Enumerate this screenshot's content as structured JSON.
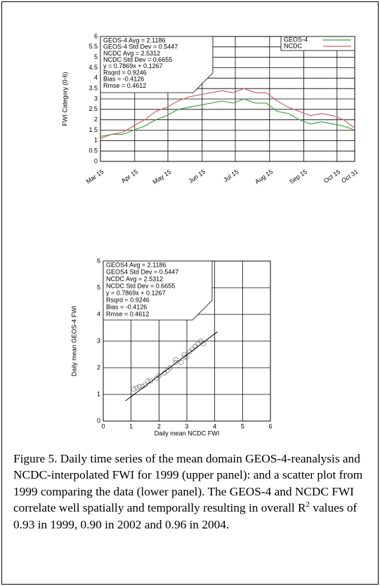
{
  "chart_data": [
    {
      "type": "line",
      "ylabel": "FWI Category (0-6)",
      "x": [
        0,
        10,
        20,
        30,
        40,
        50,
        60,
        70,
        80,
        90,
        100,
        110,
        120,
        130,
        140,
        150,
        160,
        170,
        180,
        190,
        200,
        210,
        220,
        230
      ],
      "xlim": [
        0,
        230
      ],
      "xticks": [
        {
          "value": 0,
          "label": "Mar 15"
        },
        {
          "value": 31,
          "label": "Apr 15"
        },
        {
          "value": 61,
          "label": "May 15"
        },
        {
          "value": 92,
          "label": "Jun 15"
        },
        {
          "value": 122,
          "label": "Jul 15"
        },
        {
          "value": 153,
          "label": "Aug 15"
        },
        {
          "value": 184,
          "label": "Sep 15"
        },
        {
          "value": 214,
          "label": "Oct 15"
        },
        {
          "value": 230,
          "label": "Oct 31"
        }
      ],
      "ylim": [
        0,
        6
      ],
      "yticks": [
        0,
        0.5,
        1,
        1.5,
        2,
        2.5,
        3,
        3.5,
        4,
        4.5,
        5,
        5.5,
        6
      ],
      "grid": true,
      "legend": "upper right",
      "annotation_lines": [
        "GEOS-4 Avg = 2.1186",
        "GEOS-4 Std Dev = 0.5447",
        "NCDC Avg = 2.5312",
        "NCDC Std Dev = 0.6655",
        "y = 0.7869x + 0.1267",
        "Rsqrd = 0.9246",
        "Bias = -0.4126",
        "Rmse = 0.4612"
      ],
      "series": [
        {
          "name": "GEOS-4",
          "color": "#3aa83a",
          "values": [
            1.2,
            1.3,
            1.3,
            1.5,
            1.7,
            2.0,
            2.2,
            2.5,
            2.6,
            2.7,
            2.8,
            2.9,
            2.8,
            3.0,
            2.8,
            2.8,
            2.4,
            2.3,
            2.0,
            1.8,
            1.9,
            1.8,
            1.7,
            1.5
          ]
        },
        {
          "name": "NCDC",
          "color": "#cc6666",
          "values": [
            1.1,
            1.3,
            1.4,
            1.7,
            2.0,
            2.4,
            2.6,
            2.9,
            3.1,
            3.2,
            3.3,
            3.4,
            3.3,
            3.5,
            3.3,
            3.3,
            2.9,
            2.6,
            2.4,
            2.2,
            2.3,
            2.2,
            2.0,
            1.6
          ]
        }
      ]
    },
    {
      "type": "scatter",
      "xlabel": "Daily mean NCDC FWI",
      "ylabel": "Daily mean GEOS-4 FWI",
      "x": [
        1.1,
        1.3,
        1.4,
        1.7,
        2.0,
        2.4,
        2.6,
        2.9,
        3.1,
        3.2,
        3.3,
        3.4,
        3.3,
        3.5,
        3.3,
        3.3,
        2.9,
        2.6,
        2.4,
        2.2,
        2.3,
        2.2,
        2.0,
        1.6,
        1.2,
        1.5,
        1.9,
        2.8,
        3.0,
        3.6
      ],
      "values": [
        1.2,
        1.3,
        1.3,
        1.5,
        1.7,
        2.0,
        2.2,
        2.5,
        2.6,
        2.7,
        2.8,
        2.9,
        2.8,
        3.0,
        2.8,
        2.8,
        2.4,
        2.3,
        2.0,
        1.8,
        1.9,
        1.8,
        1.7,
        1.5,
        1.25,
        1.35,
        1.6,
        2.2,
        2.4,
        2.9
      ],
      "color": "#888888",
      "fit_line": {
        "x": [
          0.8,
          4.1
        ],
        "values": [
          0.76,
          3.35
        ],
        "color": "#000000"
      },
      "xlim": [
        0,
        6
      ],
      "xticks": [
        0,
        1,
        2,
        3,
        4,
        5,
        6
      ],
      "ylim": [
        0,
        6
      ],
      "yticks": [
        0,
        1,
        2,
        3,
        4,
        5,
        6
      ],
      "grid": true,
      "annotation_lines": [
        "GEOS4 Avg = 2.1186",
        "GEOS4 Std Dev = 0.5447",
        "NCDC Avg = 2.5312",
        "NCDC Std Dev = 0.6655",
        "y = 0.7869x + 0.1267",
        "Rsqrd = 0.9246",
        "Bias = -0.4126",
        "Rmse = 0.4612"
      ]
    }
  ],
  "caption": {
    "before": "Figure 5. Daily time series of the mean domain GEOS-4-reanalysis and NCDC-interpolated FWI for 1999 (upper panel): and a scatter plot from 1999 comparing the data (lower panel). The GEOS-4 and NCDC FWI correlate well spatially and temporally resulting in overall R",
    "sup": "2",
    "after": " values of 0.93 in 1999, 0.90 in 2002 and 0.96 in 2004."
  }
}
